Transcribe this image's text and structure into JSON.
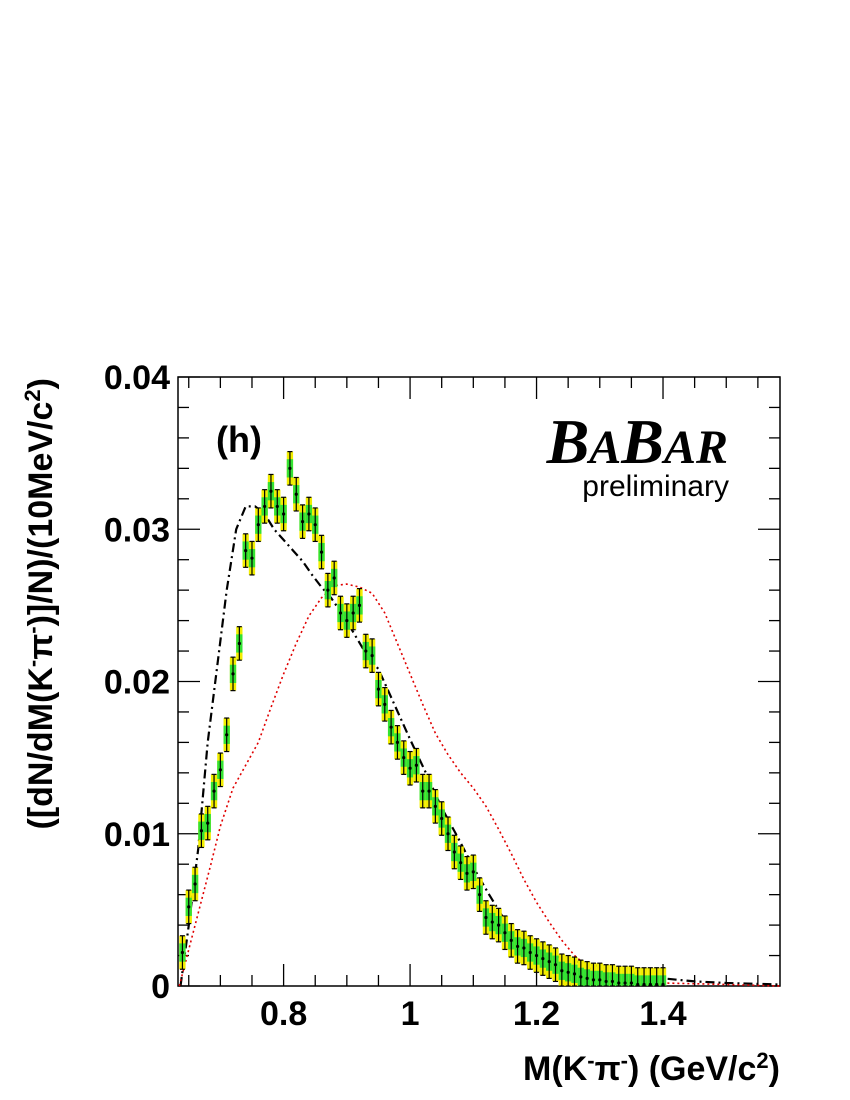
{
  "chart_data": {
    "type": "scatter",
    "xlabel": {
      "main": "M(K",
      "sup1": "-",
      "mid": "π",
      "sup2": "-",
      "unit": ") (GeV/c",
      "sup3": "2",
      "end": ")"
    },
    "ylabel": {
      "main": "([dN/dM(K",
      "sup1": "-",
      "mid": "π",
      "sup2": "-",
      "rest": ")]/N)/(10MeV/c",
      "sup3": "2",
      "end": ")"
    },
    "panel_label": "(h)",
    "logo": {
      "text": "BABAR",
      "subtitle": "preliminary"
    },
    "xlim": [
      0.633,
      1.585
    ],
    "ylim": [
      0,
      0.04
    ],
    "x_ticks": [
      0.8,
      1.0,
      1.2,
      1.4
    ],
    "x_tick_labels": [
      "0.8",
      "1",
      "1.2",
      "1.4"
    ],
    "y_ticks": [
      0,
      0.01,
      0.02,
      0.03,
      0.04
    ],
    "y_tick_labels": [
      "0",
      "0.01",
      "0.02",
      "0.03",
      "0.04"
    ],
    "bin_width": 0.01,
    "data_points": {
      "x0": 0.64,
      "values": [
        0.0022,
        0.0052,
        0.0067,
        0.0102,
        0.0107,
        0.0128,
        0.0142,
        0.0165,
        0.0205,
        0.0225,
        0.0286,
        0.0281,
        0.0303,
        0.0315,
        0.0325,
        0.0315,
        0.031,
        0.034,
        0.0323,
        0.0305,
        0.031,
        0.0303,
        0.0285,
        0.026,
        0.0268,
        0.0245,
        0.024,
        0.0245,
        0.025,
        0.022,
        0.0217,
        0.0195,
        0.0185,
        0.017,
        0.016,
        0.015,
        0.0143,
        0.0145,
        0.0128,
        0.0128,
        0.0118,
        0.011,
        0.01,
        0.0088,
        0.0081,
        0.0074,
        0.0075,
        0.006,
        0.0045,
        0.0042,
        0.004,
        0.0035,
        0.003,
        0.0026,
        0.0025,
        0.0022,
        0.002,
        0.0018,
        0.0016,
        0.0014,
        0.001,
        0.0009,
        0.0008,
        0.0006,
        0.0005,
        0.0004,
        0.0004,
        0.0003,
        0.0003,
        0.0002,
        0.0002,
        0.0002,
        0.0001,
        0.0001,
        0.0001,
        0.0001,
        0.0001
      ],
      "stat_err": 0.0006,
      "total_err": 0.0011
    },
    "series": [
      {
        "style": "dash-dot",
        "color": "#000000",
        "points": [
          [
            0.637,
            0
          ],
          [
            0.65,
            0.004
          ],
          [
            0.665,
            0.009
          ],
          [
            0.68,
            0.016
          ],
          [
            0.695,
            0.021
          ],
          [
            0.71,
            0.026
          ],
          [
            0.725,
            0.03
          ],
          [
            0.74,
            0.0315
          ],
          [
            0.755,
            0.0315
          ],
          [
            0.77,
            0.031
          ],
          [
            0.785,
            0.03
          ],
          [
            0.8,
            0.0293
          ],
          [
            0.815,
            0.0286
          ],
          [
            0.83,
            0.0279
          ],
          [
            0.845,
            0.027
          ],
          [
            0.86,
            0.0262
          ],
          [
            0.875,
            0.0255
          ],
          [
            0.89,
            0.0246
          ],
          [
            0.905,
            0.0236
          ],
          [
            0.925,
            0.0222
          ],
          [
            0.95,
            0.0208
          ],
          [
            0.975,
            0.0185
          ],
          [
            1.0,
            0.0162
          ],
          [
            1.025,
            0.014
          ],
          [
            1.05,
            0.0117
          ],
          [
            1.075,
            0.0098
          ],
          [
            1.1,
            0.0078
          ],
          [
            1.125,
            0.006
          ],
          [
            1.15,
            0.0043
          ],
          [
            1.175,
            0.0031
          ],
          [
            1.2,
            0.0024
          ],
          [
            1.25,
            0.0017
          ],
          [
            1.3,
            0.0013
          ],
          [
            1.35,
            0.0009
          ],
          [
            1.4,
            0.0005
          ],
          [
            1.45,
            0.0003
          ],
          [
            1.5,
            0.0002
          ],
          [
            1.585,
            0.0001
          ]
        ]
      },
      {
        "style": "dotted",
        "color": "#e00000",
        "points": [
          [
            0.635,
            0
          ],
          [
            0.66,
            0.004
          ],
          [
            0.685,
            0.008
          ],
          [
            0.7,
            0.0105
          ],
          [
            0.72,
            0.013
          ],
          [
            0.74,
            0.0145
          ],
          [
            0.76,
            0.016
          ],
          [
            0.78,
            0.0183
          ],
          [
            0.8,
            0.0205
          ],
          [
            0.82,
            0.0225
          ],
          [
            0.84,
            0.0243
          ],
          [
            0.86,
            0.0255
          ],
          [
            0.88,
            0.0263
          ],
          [
            0.9,
            0.0264
          ],
          [
            0.92,
            0.0262
          ],
          [
            0.94,
            0.0258
          ],
          [
            0.96,
            0.0245
          ],
          [
            0.98,
            0.0225
          ],
          [
            1.0,
            0.0205
          ],
          [
            1.02,
            0.0185
          ],
          [
            1.04,
            0.0166
          ],
          [
            1.06,
            0.0152
          ],
          [
            1.08,
            0.014
          ],
          [
            1.1,
            0.013
          ],
          [
            1.12,
            0.0118
          ],
          [
            1.14,
            0.0103
          ],
          [
            1.16,
            0.0087
          ],
          [
            1.18,
            0.007
          ],
          [
            1.2,
            0.0055
          ],
          [
            1.22,
            0.0042
          ],
          [
            1.24,
            0.003
          ],
          [
            1.26,
            0.002
          ],
          [
            1.28,
            0.0013
          ],
          [
            1.3,
            0.0008
          ],
          [
            1.33,
            0.0004
          ],
          [
            1.4,
            0.0002
          ],
          [
            1.5,
            0.0001
          ],
          [
            1.585,
            0
          ]
        ]
      }
    ],
    "colors": {
      "total_err": "#f2ee00",
      "stat_err": "#33e233",
      "dashdot": "#000000",
      "dotted": "#e00000"
    }
  }
}
